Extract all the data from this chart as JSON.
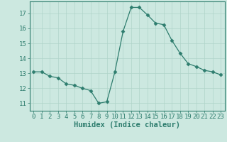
{
  "x": [
    0,
    1,
    2,
    3,
    4,
    5,
    6,
    7,
    8,
    9,
    10,
    11,
    12,
    13,
    14,
    15,
    16,
    17,
    18,
    19,
    20,
    21,
    22,
    23
  ],
  "y": [
    13.1,
    13.1,
    12.8,
    12.7,
    12.3,
    12.2,
    12.0,
    11.85,
    11.0,
    11.1,
    13.1,
    15.8,
    17.4,
    17.4,
    16.9,
    16.35,
    16.25,
    15.2,
    14.35,
    13.65,
    13.45,
    13.2,
    13.1,
    12.9
  ],
  "line_color": "#2e7d6e",
  "marker": "D",
  "marker_size": 2.5,
  "bg_color": "#cce8e0",
  "grid_color": "#b0d4ca",
  "xlabel": "Humidex (Indice chaleur)",
  "ylim": [
    10.5,
    17.8
  ],
  "xlim": [
    -0.5,
    23.5
  ],
  "yticks": [
    11,
    12,
    13,
    14,
    15,
    16,
    17
  ],
  "xticks": [
    0,
    1,
    2,
    3,
    4,
    5,
    6,
    7,
    8,
    9,
    10,
    11,
    12,
    13,
    14,
    15,
    16,
    17,
    18,
    19,
    20,
    21,
    22,
    23
  ],
  "axis_color": "#2e7d6e",
  "tick_color": "#2e7d6e",
  "label_color": "#2e7d6e",
  "font_size": 6.5,
  "xlabel_font_size": 7.5
}
